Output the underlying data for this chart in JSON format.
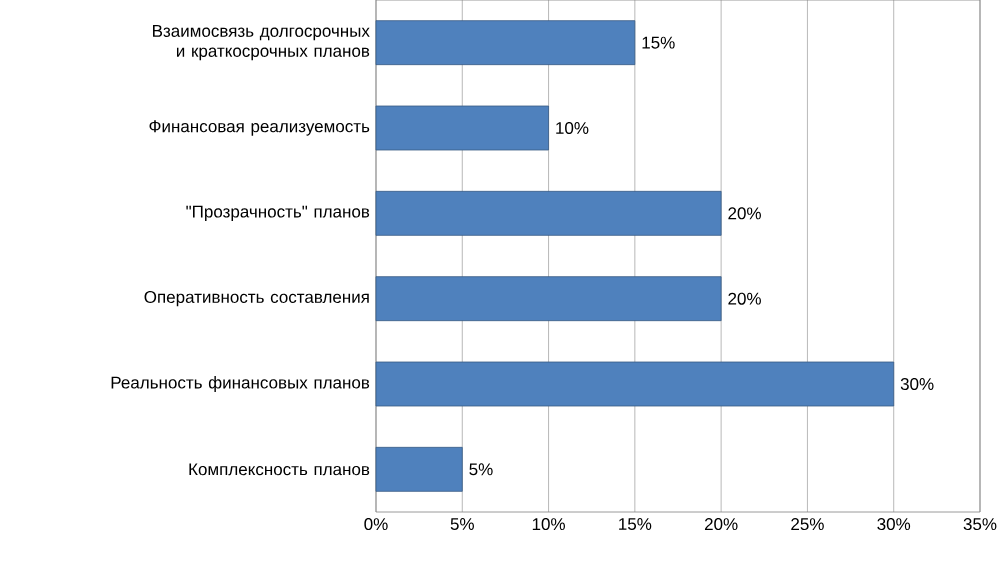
{
  "chart_data": {
    "type": "bar",
    "orientation": "horizontal",
    "categories": [
      "Взаимосвязь долгосрочных и краткосрочных планов",
      "Финансовая реализуемость",
      "\"Прозрачность\" планов",
      "Оперативность составления",
      "Реальность финансовых планов",
      "Комплексность планов"
    ],
    "values": [
      15,
      10,
      20,
      20,
      30,
      5
    ],
    "value_labels": [
      "15%",
      "10%",
      "20%",
      "20%",
      "30%",
      "5%"
    ],
    "color": "#4f81bd",
    "xlim": [
      0,
      35
    ],
    "xticks": [
      {
        "value": 0,
        "label": "0%"
      },
      {
        "value": 5,
        "label": "5%"
      },
      {
        "value": 10,
        "label": "10%"
      },
      {
        "value": 15,
        "label": "15%"
      },
      {
        "value": 20,
        "label": "20%"
      },
      {
        "value": 25,
        "label": "25%"
      },
      {
        "value": 30,
        "label": "30%"
      },
      {
        "value": 35,
        "label": "35%"
      }
    ],
    "grid": "x"
  }
}
